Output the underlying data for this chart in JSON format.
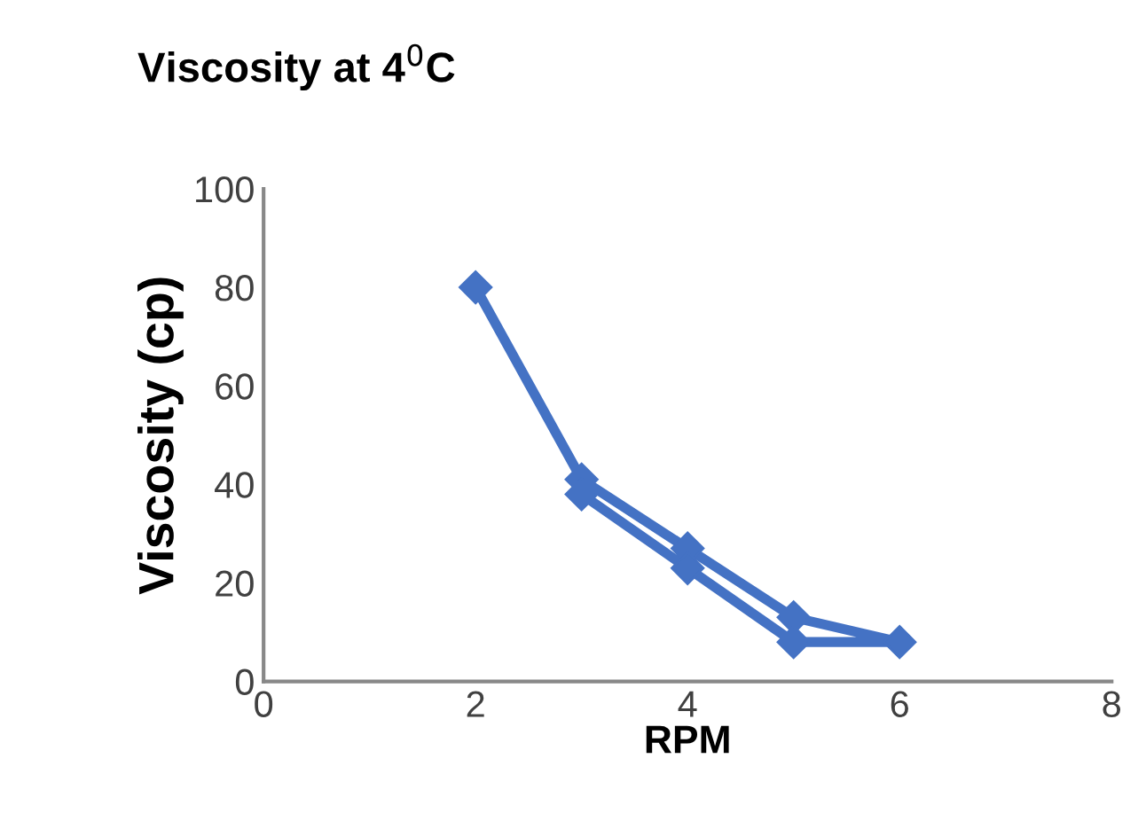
{
  "chart_data": {
    "type": "line",
    "title": "Viscosity at 4$^{0}$C",
    "xlabel": "RPM",
    "ylabel": "Viscosity (cp)",
    "series": [
      {
        "color": "#4472c4",
        "x": [
          2,
          3,
          4,
          5,
          6,
          5,
          4,
          3
        ],
        "values": [
          80,
          41,
          27,
          13,
          8,
          8,
          23,
          38
        ]
      }
    ],
    "xlim": [
      0,
      8
    ],
    "xticks": [
      0,
      2,
      4,
      6,
      8
    ],
    "ylim": [
      0,
      100
    ],
    "yticks": [
      0,
      20,
      40,
      60,
      80,
      100
    ],
    "marker": "diamond",
    "line_style": "solid",
    "grid": false,
    "legend": false
  }
}
